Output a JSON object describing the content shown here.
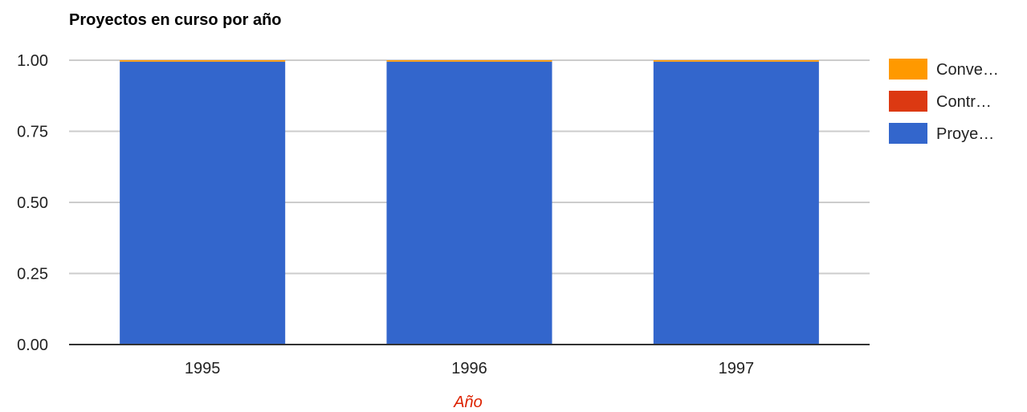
{
  "chart_data": {
    "type": "bar",
    "stacked": true,
    "title": "Proyectos en curso por año",
    "xlabel": "Año",
    "ylabel": "",
    "categories": [
      "1995",
      "1996",
      "1997"
    ],
    "ylim": [
      0,
      1
    ],
    "yticks": [
      "0.00",
      "0.25",
      "0.50",
      "0.75",
      "1.00"
    ],
    "grid": true,
    "legend_position": "right",
    "series": [
      {
        "name": "Proye…",
        "color": "#3366cc",
        "values": [
          0.995,
          0.995,
          0.995
        ]
      },
      {
        "name": "Contr…",
        "color": "#dc3912",
        "values": [
          0,
          0,
          0
        ]
      },
      {
        "name": "Conve…",
        "color": "#ff9900",
        "values": [
          0.005,
          0.005,
          0.005
        ]
      }
    ]
  }
}
